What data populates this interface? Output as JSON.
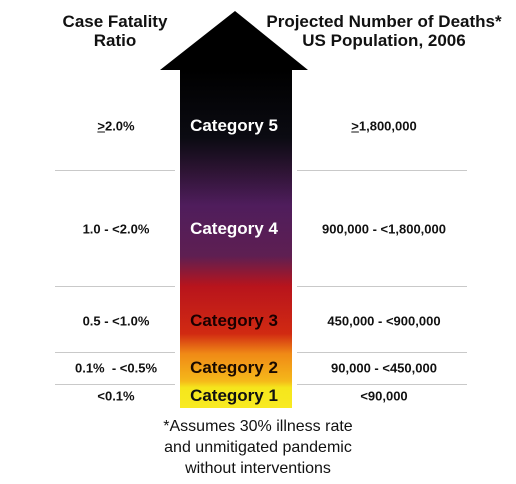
{
  "header": {
    "left_line1": "Case Fatality",
    "left_line2": "Ratio",
    "right_line1": "Projected Number of Deaths*",
    "right_line2": "US Population, 2006"
  },
  "categories": [
    {
      "label": "Category 5",
      "cfr_symbol": ">",
      "cfr_value": "2.0%",
      "deaths_symbol": ">",
      "deaths_value": "1,800,000",
      "text_color": "#ffffff"
    },
    {
      "label": "Category 4",
      "cfr_symbol": "",
      "cfr_value": "1.0 - <2.0%",
      "deaths_symbol": "",
      "deaths_value": "900,000 - <1,800,000",
      "text_color": "#ffffff"
    },
    {
      "label": "Category 3",
      "cfr_symbol": "",
      "cfr_value": "0.5 - <1.0%",
      "deaths_symbol": "",
      "deaths_value": "450,000 - <900,000",
      "text_color": "#1a0000"
    },
    {
      "label": "Category 2",
      "cfr_symbol": "",
      "cfr_value": "0.1%  - <0.5%",
      "deaths_symbol": "",
      "deaths_value": "90,000 - <450,000",
      "text_color": "#1a0a00"
    },
    {
      "label": "Category 1",
      "cfr_symbol": "",
      "cfr_value": "<0.1%",
      "deaths_symbol": "",
      "deaths_value": "<90,000",
      "text_color": "#111111"
    }
  ],
  "colors": {
    "arrow_head": "#000000",
    "cat5": "#0b0b12",
    "cat4": "#5a1f66",
    "cat3": "#c41515",
    "cat2": "#f08a16",
    "cat1": "#f5e61c"
  },
  "footnote": {
    "line1": "*Assumes 30% illness rate",
    "line2": "and unmitigated pandemic",
    "line3": "without interventions"
  }
}
